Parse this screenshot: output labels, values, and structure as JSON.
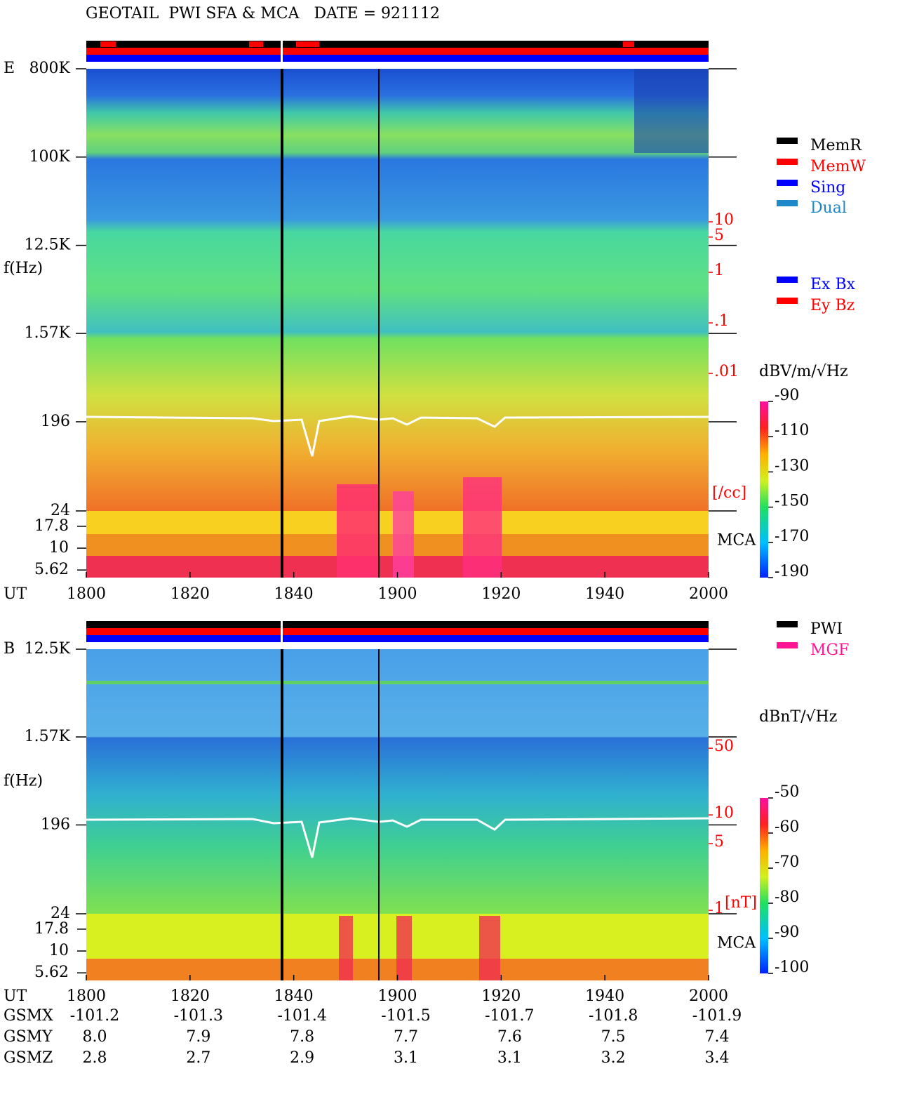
{
  "title": "GEOTAIL  PWI SFA & MCA   DATE = 921112",
  "chart_data": [
    {
      "type": "spectrogram",
      "panel_label": "E",
      "ylabel": "f(Hz)",
      "xlabel": "UT",
      "log_y": true,
      "ylim": [
        24,
        800000
      ],
      "yticks": [
        {
          "value": 800000,
          "label": "800K"
        },
        {
          "value": 100000,
          "label": "100K"
        },
        {
          "value": 12500,
          "label": "12.5K"
        },
        {
          "value": 1570,
          "label": "1.57K"
        },
        196,
        24
      ],
      "mca_label": "MCA",
      "mca_ylim": [
        4.6,
        26.7
      ],
      "mca_yticks": [
        17.8,
        10,
        5.62
      ],
      "xticks": [
        "1800",
        "1820",
        "1840",
        "1900",
        "1920",
        "1940",
        "2000"
      ],
      "y2lim": [
        1.9e-05,
        10700
      ],
      "y2ticks": [
        10,
        5,
        1,
        {
          "value": 0.1,
          "label": ".1"
        },
        {
          "value": 0.01,
          "label": ".01"
        }
      ],
      "y2_unit": "[/cc]",
      "y2_color": "#ff0000",
      "colorbar": {
        "label": "dBV/m/√Hz",
        "lim": [
          -190,
          -90
        ],
        "ticks": [
          -190,
          -170,
          -150,
          -130,
          -110,
          -90
        ]
      },
      "legend": [
        {
          "name": "MemR",
          "color": "#000000"
        },
        {
          "name": "MemW",
          "color": "#ff0000"
        },
        {
          "name": "Sing",
          "color": "#0000ff"
        },
        {
          "name": "Dual",
          "color": "#1e88c8"
        }
      ],
      "channel_legend": [
        {
          "name": "Ex Bx",
          "color": "#0000ff"
        },
        {
          "name": "Ey Bz",
          "color": "#ff0000"
        }
      ]
    },
    {
      "type": "spectrogram",
      "panel_label": "B",
      "ylabel": "f(Hz)",
      "xlabel": "UT",
      "log_y": true,
      "ylim": [
        24,
        12500
      ],
      "yticks": [
        {
          "value": 12500,
          "label": "12.5K"
        },
        {
          "value": 1570,
          "label": "1.57K"
        },
        196,
        24
      ],
      "mca_label": "MCA",
      "mca_ylim": [
        4.6,
        26.7
      ],
      "mca_yticks": [
        17.8,
        10,
        5.62
      ],
      "xticks": [
        "1800",
        "1820",
        "1840",
        "1900",
        "1920",
        "1940",
        "2000"
      ],
      "y2lim": [
        0.92,
        546
      ],
      "y2ticks": [
        50,
        10,
        5,
        1
      ],
      "y2_unit": "[nT]",
      "y2_color": "#ff0000",
      "colorbar": {
        "label": "dBnT/√Hz",
        "lim": [
          -100,
          -50
        ],
        "ticks": [
          -100,
          -90,
          -80,
          -70,
          -60,
          -50
        ]
      },
      "legend": [
        {
          "name": "PWI",
          "color": "#000000"
        },
        {
          "name": "MGF",
          "color": "#ff1493"
        }
      ]
    }
  ],
  "ephemeris": {
    "rows": [
      {
        "label": "GSMX",
        "values": [
          "-101.2",
          "-101.3",
          "-101.4",
          "-101.5",
          "-101.7",
          "-101.8",
          "-101.9"
        ]
      },
      {
        "label": "GSMY",
        "values": [
          "8.0",
          "7.9",
          "7.8",
          "7.7",
          "7.6",
          "7.5",
          "7.4"
        ]
      },
      {
        "label": "GSMZ",
        "values": [
          "2.8",
          "2.7",
          "2.9",
          "3.1",
          "3.1",
          "3.2",
          "3.4"
        ]
      }
    ]
  }
}
